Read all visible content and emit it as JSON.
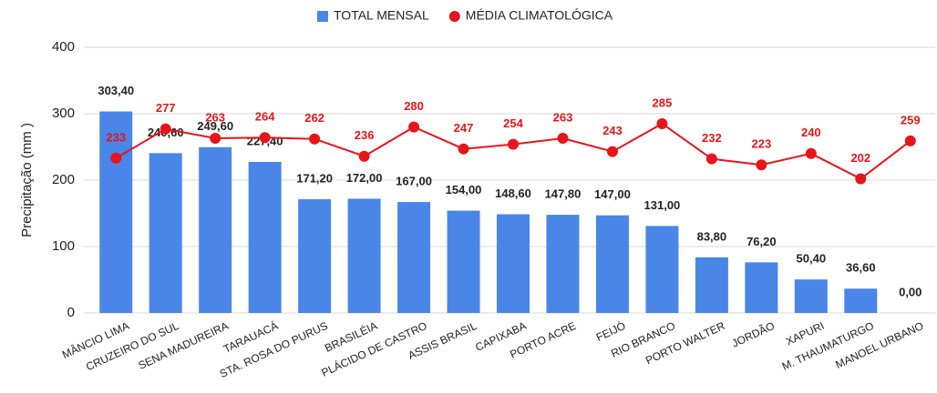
{
  "chart_data": {
    "type": "bar-line",
    "y_label": "Precipitação (mm )",
    "categories": [
      "MÂNCIO LIMA",
      "CRUZEIRO DO SUL",
      "SENA MADUREIRA",
      "TARAUACÁ",
      "STA. ROSA DO PURUS",
      "BRASILÉIA",
      "PLÁCIDO DE CASTRO",
      "ASSIS BRASIL",
      "CAPIXABA",
      "PORTO ACRE",
      "FEIJÓ",
      "RIO BRANCO",
      "PORTO WALTER",
      "JORDÃO",
      "XAPURI",
      "M. THAUMATURGO",
      "MANOEL URBANO"
    ],
    "series": [
      {
        "name": "TOTAL MENSAL",
        "color": "#4a86e8",
        "type": "bar",
        "values": [
          303.4,
          240.6,
          249.6,
          227.4,
          171.2,
          172,
          167,
          154,
          148.6,
          147.8,
          147,
          131,
          83.8,
          76.2,
          50.4,
          36.6,
          0
        ],
        "value_labels": [
          "303,40",
          "240,60",
          "249,60",
          "227,40",
          "171,20",
          "172,00",
          "167,00",
          "154,00",
          "148,60",
          "147,80",
          "147,00",
          "131,00",
          "83,80",
          "76,20",
          "50,40",
          "36,60",
          "0,00"
        ]
      },
      {
        "name": "MÉDIA CLIMATOLÓGICA",
        "color": "#e8141b",
        "type": "line",
        "values": [
          233,
          277,
          263,
          264,
          262,
          236,
          280,
          247,
          254,
          263,
          243,
          285,
          232,
          223,
          240,
          202,
          259
        ]
      }
    ],
    "ylim": [
      0,
      400
    ],
    "yticks": [
      0,
      100,
      200,
      300,
      400
    ],
    "grid": true,
    "legend": "top"
  }
}
